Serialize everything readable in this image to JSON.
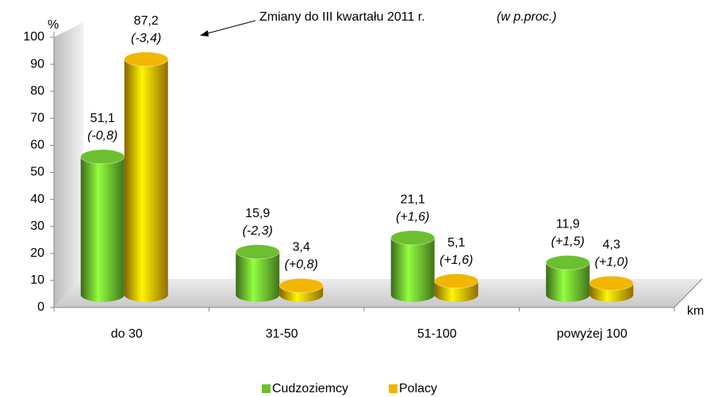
{
  "chart_data": {
    "type": "bar",
    "y_label": "%",
    "x_label": "km",
    "annotation": "Zmiany do III kwartału 2011 r.",
    "annotation_unit": "(w p.proc.)",
    "categories": [
      "do 30",
      "31-50",
      "51-100",
      "powyżej 100"
    ],
    "series": [
      {
        "name": "Cudzoziemcy",
        "color": "#6cbf2f",
        "values": [
          51.1,
          15.9,
          21.1,
          11.9
        ],
        "value_labels": [
          "51,1",
          "15,9",
          "21,1",
          "11,9"
        ],
        "change_labels": [
          "(-0,8)",
          "(-2,3)",
          "(+1,6)",
          "(+1,5)"
        ]
      },
      {
        "name": "Polacy",
        "color": "#f2b600",
        "values": [
          87.2,
          3.4,
          5.1,
          4.3
        ],
        "value_labels": [
          "87,2",
          "3,4",
          "5,1",
          "4,3"
        ],
        "change_labels": [
          "(-3,4)",
          "(+0,8)",
          "(+1,6)",
          "(+1,0)"
        ]
      }
    ],
    "ylim": [
      0,
      100
    ],
    "yticks": [
      0,
      10,
      20,
      30,
      40,
      50,
      60,
      70,
      80,
      90,
      100
    ],
    "legend": "bottom",
    "grid": false
  }
}
